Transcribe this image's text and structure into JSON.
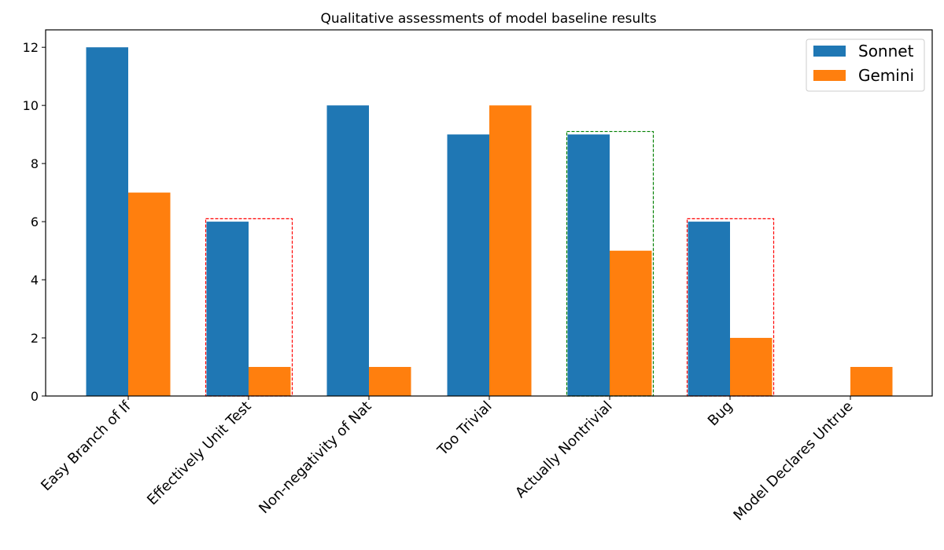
{
  "chart_data": {
    "type": "bar",
    "title": "Qualitative assessments of model baseline results",
    "xlabel": "",
    "ylabel": "",
    "ylim": [
      0,
      12.6
    ],
    "yticks": [
      0,
      2,
      4,
      6,
      8,
      10,
      12
    ],
    "grid": false,
    "legend_position": "top-right",
    "categories": [
      "Easy Branch of If",
      "Effectively Unit Test",
      "Non-negativity of Nat",
      "Too Trivial",
      "Actually Nontrivial",
      "Bug",
      "Model Declares Untrue"
    ],
    "series": [
      {
        "name": "Sonnet",
        "color": "#1f77b4",
        "values": [
          12,
          6,
          10,
          9,
          9,
          6,
          0
        ]
      },
      {
        "name": "Gemini",
        "color": "#ff7f0e",
        "values": [
          7,
          1,
          1,
          10,
          5,
          2,
          1
        ]
      }
    ],
    "highlights": [
      {
        "category": "Effectively Unit Test",
        "color": "#ff0000",
        "style": "dashed",
        "top": 6.1
      },
      {
        "category": "Actually Nontrivial",
        "color": "#008000",
        "style": "dashed",
        "top": 9.1
      },
      {
        "category": "Bug",
        "color": "#ff0000",
        "style": "dashed",
        "top": 6.1
      }
    ]
  }
}
